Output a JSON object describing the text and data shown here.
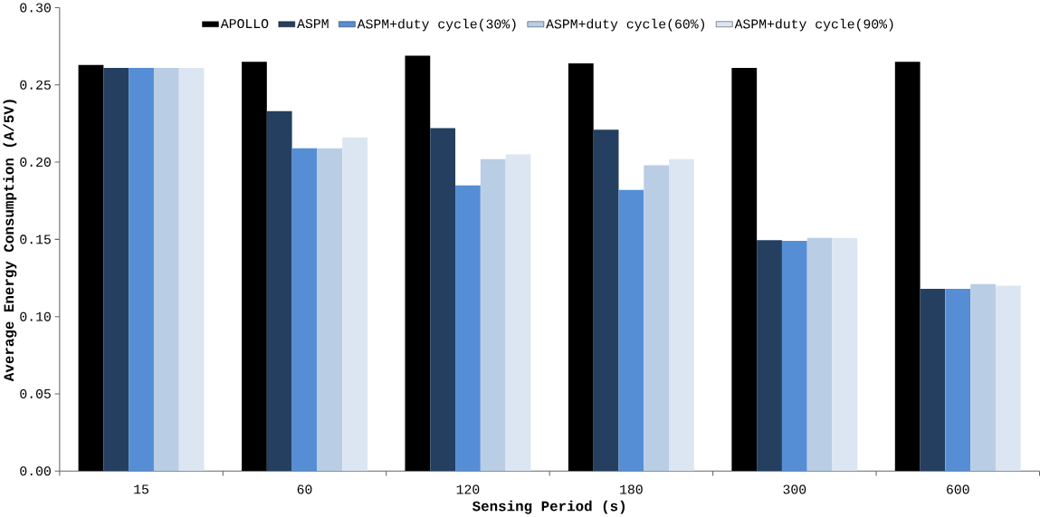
{
  "chart_data": {
    "type": "bar",
    "xlabel": "Sensing Period (s)",
    "ylabel": "Average Energy Consumption (A/5V)",
    "categories": [
      "15",
      "60",
      "120",
      "180",
      "300",
      "600"
    ],
    "series": [
      {
        "name": "APOLLO",
        "color": "#000000",
        "values": [
          0.263,
          0.265,
          0.269,
          0.264,
          0.261,
          0.265
        ]
      },
      {
        "name": "ASPM",
        "color": "#243f60",
        "values": [
          0.261,
          0.233,
          0.222,
          0.221,
          0.1495,
          0.118
        ]
      },
      {
        "name": "ASPM+duty cycle(30%)",
        "color": "#558ed5",
        "values": [
          0.261,
          0.209,
          0.185,
          0.182,
          0.149,
          0.118
        ]
      },
      {
        "name": "ASPM+duty cycle(60%)",
        "color": "#b9cde5",
        "values": [
          0.261,
          0.209,
          0.202,
          0.198,
          0.151,
          0.121
        ]
      },
      {
        "name": "ASPM+duty cycle(90%)",
        "color": "#dce6f2",
        "values": [
          0.261,
          0.216,
          0.205,
          0.202,
          0.151,
          0.12
        ]
      }
    ],
    "ylim": [
      0,
      0.3
    ],
    "yticks": [
      {
        "value": 0,
        "label": "0.00"
      },
      {
        "value": 0.05,
        "label": "0.05"
      },
      {
        "value": 0.1,
        "label": "0.10"
      },
      {
        "value": 0.15,
        "label": "0.15"
      },
      {
        "value": 0.2,
        "label": "0.20"
      },
      {
        "value": 0.25,
        "label": "0.25"
      },
      {
        "value": 0.3,
        "label": "0.30"
      }
    ],
    "legend": "top",
    "grid": false
  }
}
